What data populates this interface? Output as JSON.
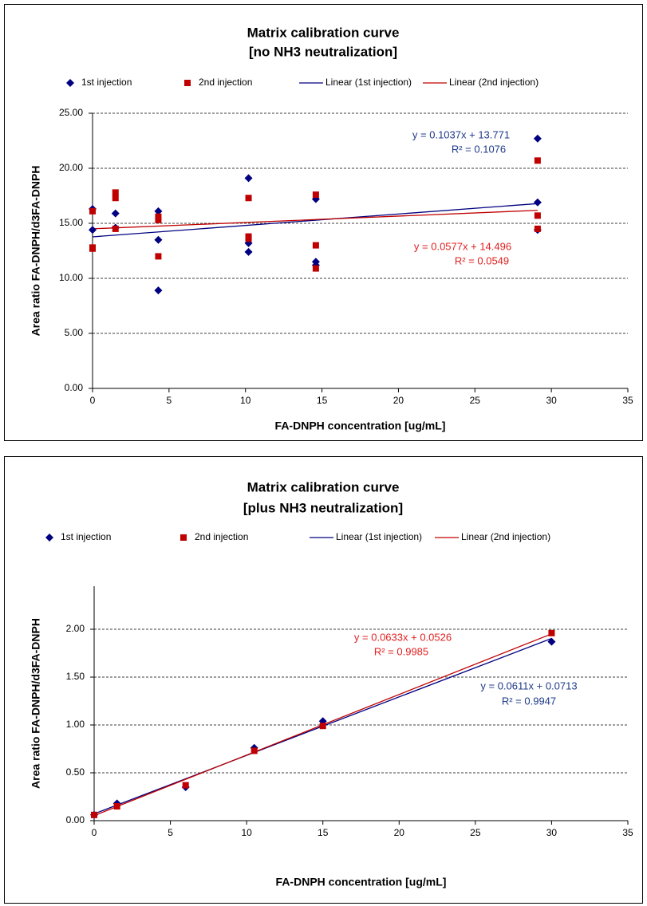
{
  "chart_data": [
    {
      "type": "scatter",
      "title": [
        "Matrix calibration curve",
        "[no NH3 neutralization]"
      ],
      "x_label": "FA-DNPH  concentration  [ug/mL]",
      "y_label": "Area ratio  FA-DNPH/d3FA-DNPH",
      "xlim": [
        0,
        35
      ],
      "xticks": [
        0,
        5,
        10,
        15,
        20,
        25,
        30,
        35
      ],
      "ylim": [
        0,
        25
      ],
      "yticks": [
        {
          "value": 0,
          "label": "0.00"
        },
        {
          "value": 5,
          "label": "5.00"
        },
        {
          "value": 10,
          "label": "10.00"
        },
        {
          "value": 15,
          "label": "15.00"
        },
        {
          "value": 20,
          "label": "20.00"
        },
        {
          "value": 25,
          "label": "25.00"
        }
      ],
      "grid": true,
      "series": [
        {
          "name": "1st injection",
          "color": "#000080",
          "marker": "diamond",
          "x": [
            0,
            0,
            1.5,
            1.5,
            4.3,
            4.3,
            4.3,
            10.2,
            10.2,
            10.2,
            14.6,
            14.6,
            14.6,
            29.1,
            29.1,
            29.1
          ],
          "values": [
            16.3,
            14.4,
            15.9,
            14.6,
            16.1,
            13.5,
            8.9,
            19.1,
            13.2,
            12.4,
            17.2,
            11.5,
            11.2,
            22.7,
            16.9,
            14.4
          ]
        },
        {
          "name": "2nd injection",
          "color": "#c00000",
          "marker": "square",
          "x": [
            0,
            0,
            0,
            1.5,
            1.5,
            1.5,
            4.3,
            4.3,
            4.3,
            10.2,
            10.2,
            10.2,
            14.6,
            14.6,
            14.6,
            29.1,
            29.1,
            29.1
          ],
          "values": [
            16.1,
            12.7,
            12.8,
            17.8,
            17.3,
            14.5,
            15.6,
            15.3,
            12.0,
            17.3,
            13.8,
            13.6,
            17.6,
            13.0,
            10.9,
            20.7,
            15.7,
            14.5
          ]
        },
        {
          "name": "Linear (1st injection)",
          "color": "#000080",
          "marker": "line",
          "x": [
            0,
            29.1
          ],
          "values": [
            13.77,
            16.79
          ]
        },
        {
          "name": "Linear (2nd injection)",
          "color": "#c00000",
          "marker": "line",
          "x": [
            0,
            29.1
          ],
          "values": [
            14.5,
            16.18
          ]
        }
      ],
      "annotations": [
        {
          "lines": [
            "y = 0.1037x + 13.771",
            "R² = 0.1076"
          ],
          "color": "#1f3a8a"
        },
        {
          "lines": [
            "y = 0.0577x + 14.496",
            "R² = 0.0549"
          ],
          "color": "#e02020"
        }
      ]
    },
    {
      "type": "scatter",
      "title": [
        "Matrix calibration curve",
        "[plus NH3 neutralization]"
      ],
      "x_label": "FA-DNPH  concentration  [ug/mL]",
      "y_label": "Area ratio FA-DNPH/d3FA-DNPH",
      "xlim": [
        0,
        35
      ],
      "xticks": [
        0,
        5,
        10,
        15,
        20,
        25,
        30,
        35
      ],
      "ylim": [
        0,
        2.45
      ],
      "yticks": [
        {
          "value": 0,
          "label": "0.00"
        },
        {
          "value": 0.5,
          "label": "0.50"
        },
        {
          "value": 1,
          "label": "1.00"
        },
        {
          "value": 1.5,
          "label": "1.50"
        },
        {
          "value": 2,
          "label": "2.00"
        }
      ],
      "grid": true,
      "series": [
        {
          "name": "1st injection",
          "color": "#000080",
          "marker": "diamond",
          "x": [
            0,
            1.5,
            6,
            10.5,
            15,
            30
          ],
          "values": [
            0.06,
            0.18,
            0.35,
            0.76,
            1.04,
            1.87
          ]
        },
        {
          "name": "2nd injection",
          "color": "#c00000",
          "marker": "square",
          "x": [
            0,
            1.5,
            6,
            10.5,
            15,
            30
          ],
          "values": [
            0.06,
            0.15,
            0.37,
            0.73,
            0.99,
            1.96
          ]
        },
        {
          "name": "Linear (1st injection)",
          "color": "#000080",
          "marker": "line",
          "x": [
            0,
            30
          ],
          "values": [
            0.0713,
            1.904
          ]
        },
        {
          "name": "Linear (2nd injection)",
          "color": "#c00000",
          "marker": "line",
          "x": [
            0,
            30
          ],
          "values": [
            0.0526,
            1.9516
          ]
        }
      ],
      "annotations": [
        {
          "lines": [
            "y = 0.0633x + 0.0526",
            "R² = 0.9985"
          ],
          "color": "#e02020"
        },
        {
          "lines": [
            "y = 0.0611x + 0.0713",
            "R² = 0.9947"
          ],
          "color": "#1f3a8a"
        }
      ]
    }
  ]
}
